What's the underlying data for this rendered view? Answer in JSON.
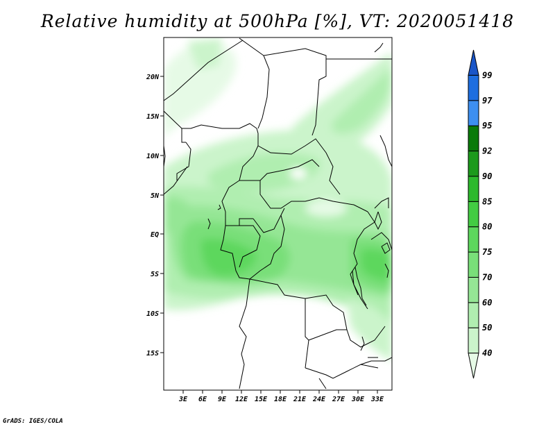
{
  "title": "Relative humidity at 500hPa [%], VT: 2020051418",
  "footer": "GrADS: IGES/COLA",
  "map": {
    "lat_labels": [
      "20N",
      "15N",
      "10N",
      "5N",
      "EQ",
      "5S",
      "10S",
      "15S"
    ],
    "lon_labels": [
      "3E",
      "6E",
      "9E",
      "12E",
      "15E",
      "18E",
      "21E",
      "24E",
      "27E",
      "30E",
      "33E"
    ]
  },
  "colorbar": {
    "levels": [
      "40",
      "50",
      "60",
      "70",
      "75",
      "80",
      "85",
      "90",
      "92",
      "95",
      "97",
      "99"
    ],
    "colors": [
      "#e6fae6",
      "#cbf4cb",
      "#b0eeb0",
      "#95e695",
      "#79df79",
      "#5dd75d",
      "#43cc43",
      "#2db92d",
      "#1c9a1c",
      "#0a7a0a",
      "#3d8ff0",
      "#1e6ee0",
      "#1a56c8"
    ]
  }
}
